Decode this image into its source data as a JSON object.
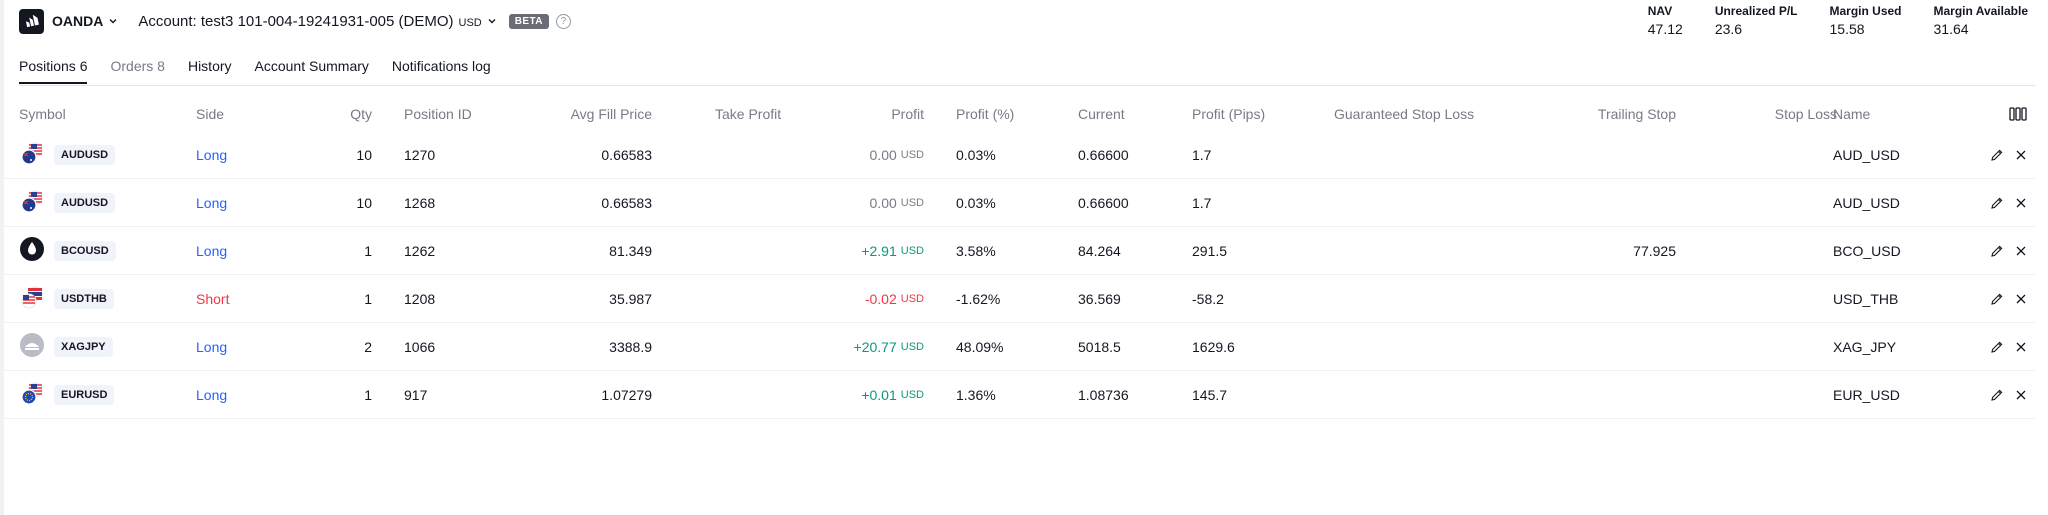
{
  "header": {
    "broker_name": "OANDA",
    "account_text": "Account: test3 101-004-19241931-005 (DEMO)",
    "account_currency": "USD",
    "beta_badge": "BETA",
    "help_glyph": "?"
  },
  "stats": [
    {
      "label": "NAV",
      "value": "47.12"
    },
    {
      "label": "Unrealized P/L",
      "value": "23.6"
    },
    {
      "label": "Margin Used",
      "value": "15.58"
    },
    {
      "label": "Margin Available",
      "value": "31.64"
    }
  ],
  "tabs": [
    {
      "label": "Positions 6",
      "active": true
    },
    {
      "label": "Orders 8",
      "active": false,
      "muted": true
    },
    {
      "label": "History",
      "active": false
    },
    {
      "label": "Account Summary",
      "active": false
    },
    {
      "label": "Notifications log",
      "active": false
    }
  ],
  "columns": {
    "symbol": "Symbol",
    "side": "Side",
    "qty": "Qty",
    "position_id": "Position ID",
    "avg_fill_price": "Avg Fill Price",
    "take_profit": "Take Profit",
    "profit": "Profit",
    "profit_pct": "Profit (%)",
    "current": "Current",
    "profit_pips": "Profit (Pips)",
    "guaranteed_stop_loss": "Guaranteed Stop Loss",
    "trailing_stop": "Trailing Stop",
    "stop_loss": "Stop Loss",
    "name": "Name"
  },
  "rows": [
    {
      "flag_icon": "australia-us-flag-icon",
      "symbol": "AUDUSD",
      "side": "Long",
      "side_type": "long",
      "qty": "10",
      "position_id": "1270",
      "avg_fill_price": "0.66583",
      "take_profit": "",
      "profit": "0.00",
      "profit_currency": "USD",
      "profit_sign": "flat",
      "profit_pct": "0.03%",
      "current": "0.66600",
      "profit_pips": "1.7",
      "guaranteed_stop_loss": "",
      "trailing_stop": "",
      "stop_loss": "",
      "name": "AUD_USD"
    },
    {
      "flag_icon": "australia-us-flag-icon",
      "symbol": "AUDUSD",
      "side": "Long",
      "side_type": "long",
      "qty": "10",
      "position_id": "1268",
      "avg_fill_price": "0.66583",
      "take_profit": "",
      "profit": "0.00",
      "profit_currency": "USD",
      "profit_sign": "flat",
      "profit_pct": "0.03%",
      "current": "0.66600",
      "profit_pips": "1.7",
      "guaranteed_stop_loss": "",
      "trailing_stop": "",
      "stop_loss": "",
      "name": "AUD_USD"
    },
    {
      "flag_icon": "oil-drop-icon",
      "symbol": "BCOUSD",
      "side": "Long",
      "side_type": "long",
      "qty": "1",
      "position_id": "1262",
      "avg_fill_price": "81.349",
      "take_profit": "",
      "profit": "+2.91",
      "profit_currency": "USD",
      "profit_sign": "pos",
      "profit_pct": "3.58%",
      "current": "84.264",
      "profit_pips": "291.5",
      "guaranteed_stop_loss": "",
      "trailing_stop": "77.925",
      "stop_loss": "",
      "name": "BCO_USD"
    },
    {
      "flag_icon": "us-thailand-flag-icon",
      "symbol": "USDTHB",
      "side": "Short",
      "side_type": "short",
      "qty": "1",
      "position_id": "1208",
      "avg_fill_price": "35.987",
      "take_profit": "",
      "profit": "-0.02",
      "profit_currency": "USD",
      "profit_sign": "neg",
      "profit_pct": "-1.62%",
      "current": "36.569",
      "profit_pips": "-58.2",
      "guaranteed_stop_loss": "",
      "trailing_stop": "",
      "stop_loss": "",
      "name": "USD_THB"
    },
    {
      "flag_icon": "silver-icon",
      "symbol": "XAGJPY",
      "side": "Long",
      "side_type": "long",
      "qty": "2",
      "position_id": "1066",
      "avg_fill_price": "3388.9",
      "take_profit": "",
      "profit": "+20.77",
      "profit_currency": "USD",
      "profit_sign": "pos",
      "profit_pct": "48.09%",
      "current": "5018.5",
      "profit_pips": "1629.6",
      "guaranteed_stop_loss": "",
      "trailing_stop": "",
      "stop_loss": "",
      "name": "XAG_JPY"
    },
    {
      "flag_icon": "eu-us-flag-icon",
      "symbol": "EURUSD",
      "side": "Long",
      "side_type": "long",
      "qty": "1",
      "position_id": "917",
      "avg_fill_price": "1.07279",
      "take_profit": "",
      "profit": "+0.01",
      "profit_currency": "USD",
      "profit_sign": "pos",
      "profit_pct": "1.36%",
      "current": "1.08736",
      "profit_pips": "145.7",
      "guaranteed_stop_loss": "",
      "trailing_stop": "",
      "stop_loss": "",
      "name": "EUR_USD"
    }
  ],
  "colors": {
    "long": "#2962ff",
    "short": "#f23645",
    "profit_pos": "#089981",
    "profit_neg": "#f23645"
  }
}
